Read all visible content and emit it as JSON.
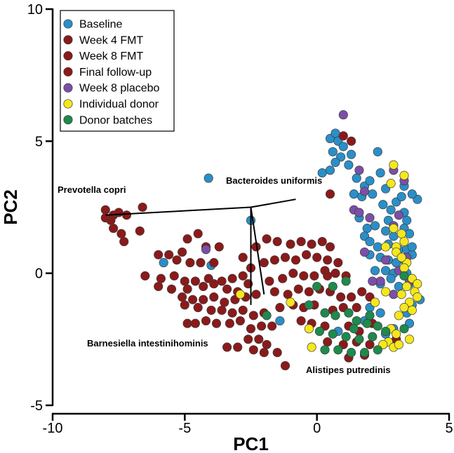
{
  "chart_data": {
    "type": "scatter",
    "title": "",
    "xlabel": "PC1",
    "ylabel": "PC2",
    "xlim": [
      -10,
      5
    ],
    "ylim": [
      -5,
      10
    ],
    "xticks": [
      -10,
      -5,
      0,
      5
    ],
    "yticks": [
      -5,
      0,
      5,
      10
    ],
    "xtick_labels": [
      "-10",
      "-5",
      "0",
      "5"
    ],
    "ytick_labels": [
      "-5",
      "0",
      "5",
      "10"
    ],
    "grid": false,
    "legend_position": "top-left",
    "legend": [
      {
        "label": "Baseline",
        "color": "#2a8fc8"
      },
      {
        "label": "Week 4 FMT",
        "color": "#8b1a1a"
      },
      {
        "label": "Week 8 FMT",
        "color": "#8b1a1a"
      },
      {
        "label": "Final follow-up",
        "color": "#8b1a1a"
      },
      {
        "label": "Week 8 placebo",
        "color": "#7b4fa8"
      },
      {
        "label": "Individual donor",
        "color": "#f5e71b"
      },
      {
        "label": "Donor batches",
        "color": "#1e8a4c"
      }
    ],
    "loadings": [
      {
        "label": "Prevotella copri",
        "x": -8.0,
        "y": 2.2
      },
      {
        "label": "Bacteroides uniformis",
        "x": -0.8,
        "y": 2.8
      },
      {
        "label": "Barnesiella intestinihominis",
        "x": -2.5,
        "y": -1.2
      },
      {
        "label": "Alistipes putredinis",
        "x": -2.0,
        "y": -0.8
      }
    ],
    "loading_origin": {
      "x": -2.5,
      "y": 2.5
    },
    "series": [
      {
        "legend_index": 0,
        "color": "#2a8fc8",
        "points": [
          [
            0.5,
            5.1
          ],
          [
            0.7,
            5.3
          ],
          [
            0.8,
            5.0
          ],
          [
            0.6,
            4.6
          ],
          [
            0.9,
            4.4
          ],
          [
            1.0,
            4.8
          ],
          [
            1.3,
            4.5
          ],
          [
            0.2,
            3.8
          ],
          [
            0.5,
            3.9
          ],
          [
            0.7,
            4.2
          ],
          [
            1.2,
            4.1
          ],
          [
            1.5,
            3.6
          ],
          [
            1.8,
            3.3
          ],
          [
            2.0,
            3.5
          ],
          [
            2.3,
            4.6
          ],
          [
            2.4,
            3.8
          ],
          [
            2.6,
            3.2
          ],
          [
            1.4,
            3.0
          ],
          [
            1.7,
            2.9
          ],
          [
            2.1,
            3.0
          ],
          [
            2.5,
            2.6
          ],
          [
            2.8,
            2.4
          ],
          [
            2.7,
            2.0
          ],
          [
            3.0,
            2.7
          ],
          [
            3.2,
            2.9
          ],
          [
            3.3,
            2.3
          ],
          [
            3.4,
            2.0
          ],
          [
            1.6,
            2.1
          ],
          [
            1.9,
            1.7
          ],
          [
            2.2,
            1.8
          ],
          [
            2.6,
            1.6
          ],
          [
            2.9,
            1.4
          ],
          [
            3.3,
            1.7
          ],
          [
            3.5,
            1.5
          ],
          [
            1.8,
            1.4
          ],
          [
            2.0,
            1.2
          ],
          [
            2.3,
            1.0
          ],
          [
            2.7,
            1.1
          ],
          [
            3.1,
            0.9
          ],
          [
            3.4,
            0.9
          ],
          [
            3.6,
            0.7
          ],
          [
            2.0,
            0.7
          ],
          [
            2.4,
            0.6
          ],
          [
            2.7,
            0.5
          ],
          [
            3.0,
            0.4
          ],
          [
            3.3,
            0.5
          ],
          [
            2.2,
            0.1
          ],
          [
            2.6,
            0.1
          ],
          [
            2.9,
            0.0
          ],
          [
            3.4,
            0.0
          ],
          [
            2.4,
            -0.4
          ],
          [
            2.8,
            -0.2
          ],
          [
            3.1,
            -0.5
          ],
          [
            3.5,
            -0.4
          ],
          [
            3.9,
            -1.0
          ],
          [
            3.6,
            -1.2
          ],
          [
            3.4,
            -1.5
          ],
          [
            3.5,
            -1.9
          ],
          [
            2.9,
            -2.1
          ],
          [
            2.6,
            -2.3
          ],
          [
            2.4,
            -1.5
          ],
          [
            2.0,
            -1.3
          ],
          [
            1.8,
            -1.8
          ],
          [
            0.8,
            -2.2
          ],
          [
            -1.4,
            -1.8
          ],
          [
            -4.1,
            3.6
          ],
          [
            -5.8,
            0.4
          ],
          [
            -4.0,
            0.3
          ],
          [
            -2.5,
            2.0
          ],
          [
            3.8,
            2.8
          ],
          [
            3.6,
            3.0
          ],
          [
            3.3,
            3.3
          ],
          [
            3.6,
            1.0
          ]
        ]
      },
      {
        "legend_index": 1,
        "color": "#8b1a1a",
        "points": [
          [
            -8.0,
            2.4
          ],
          [
            -7.7,
            2.2
          ],
          [
            -7.5,
            2.3
          ],
          [
            -7.8,
            2.0
          ],
          [
            -7.2,
            2.2
          ],
          [
            -6.6,
            2.5
          ],
          [
            -8.0,
            2.1
          ],
          [
            -7.7,
            1.7
          ],
          [
            -7.4,
            1.5
          ],
          [
            -6.7,
            1.6
          ],
          [
            -7.3,
            1.2
          ],
          [
            -4.5,
            1.5
          ],
          [
            -4.9,
            1.3
          ],
          [
            -4.2,
            1.0
          ],
          [
            -3.7,
            1.0
          ],
          [
            -5.1,
            0.8
          ],
          [
            -5.6,
            0.7
          ],
          [
            -6.0,
            0.7
          ],
          [
            -5.3,
            0.5
          ],
          [
            -4.8,
            0.4
          ],
          [
            -4.4,
            0.4
          ],
          [
            -3.9,
            0.4
          ],
          [
            -6.5,
            -0.1
          ],
          [
            -5.9,
            -0.2
          ],
          [
            -5.4,
            -0.1
          ],
          [
            -5.0,
            -0.3
          ],
          [
            -4.6,
            -0.3
          ],
          [
            -4.1,
            -0.2
          ],
          [
            -3.6,
            -0.3
          ],
          [
            -3.2,
            -0.2
          ],
          [
            -2.8,
            -0.1
          ],
          [
            -6.0,
            -0.5
          ],
          [
            -5.5,
            -0.6
          ],
          [
            -4.9,
            -0.6
          ],
          [
            -4.3,
            -0.5
          ],
          [
            -3.9,
            -0.4
          ],
          [
            -3.4,
            -0.6
          ],
          [
            -3.0,
            -0.7
          ],
          [
            -2.6,
            -0.4
          ],
          [
            -5.1,
            -0.9
          ],
          [
            -4.7,
            -1.0
          ],
          [
            -4.3,
            -1.0
          ],
          [
            -3.9,
            -0.9
          ],
          [
            -3.5,
            -1.1
          ],
          [
            -3.1,
            -1.0
          ],
          [
            -2.7,
            -0.9
          ],
          [
            -2.3,
            -0.8
          ],
          [
            -5.0,
            -1.2
          ],
          [
            -4.5,
            -1.3
          ],
          [
            -4.0,
            -1.4
          ],
          [
            -3.6,
            -1.4
          ],
          [
            -3.2,
            -1.5
          ],
          [
            -2.8,
            -1.4
          ],
          [
            -2.4,
            -1.6
          ],
          [
            -2.0,
            -1.5
          ],
          [
            -4.9,
            -1.9
          ],
          [
            -4.6,
            -1.9
          ],
          [
            -4.2,
            -1.8
          ],
          [
            -3.8,
            -1.9
          ],
          [
            -3.3,
            -1.9
          ],
          [
            -2.9,
            -1.8
          ],
          [
            -2.5,
            -2.1
          ],
          [
            -2.1,
            -2.0
          ],
          [
            -1.7,
            -2.0
          ],
          [
            -2.6,
            -2.5
          ],
          [
            -2.2,
            -2.5
          ],
          [
            -1.9,
            -2.7
          ],
          [
            -2.4,
            -2.9
          ],
          [
            -2.0,
            -3.0
          ],
          [
            -1.5,
            -3.0
          ],
          [
            -3.0,
            -2.8
          ],
          [
            -3.4,
            -2.8
          ],
          [
            -1.2,
            -3.5
          ],
          [
            -2.8,
            0.6
          ],
          [
            -2.3,
            1.0
          ],
          [
            -1.9,
            1.3
          ],
          [
            -1.5,
            1.2
          ],
          [
            -1.0,
            1.1
          ],
          [
            -0.6,
            1.2
          ],
          [
            -0.2,
            1.1
          ],
          [
            0.2,
            1.2
          ],
          [
            0.5,
            1.0
          ],
          [
            -2.5,
            0.2
          ],
          [
            -2.0,
            0.4
          ],
          [
            -1.6,
            0.5
          ],
          [
            -1.2,
            0.6
          ],
          [
            -0.8,
            0.5
          ],
          [
            -0.4,
            0.7
          ],
          [
            0.0,
            0.6
          ],
          [
            0.4,
            0.5
          ],
          [
            0.8,
            0.4
          ],
          [
            -1.8,
            -0.3
          ],
          [
            -1.3,
            -0.2
          ],
          [
            -0.9,
            0.0
          ],
          [
            -0.5,
            -0.1
          ],
          [
            -0.1,
            -0.1
          ],
          [
            0.3,
            0.1
          ],
          [
            0.7,
            0.0
          ],
          [
            1.1,
            -0.1
          ],
          [
            -1.6,
            -0.7
          ],
          [
            -1.1,
            -0.8
          ],
          [
            -0.7,
            -0.6
          ],
          [
            -0.3,
            -0.7
          ],
          [
            0.1,
            -0.6
          ],
          [
            0.5,
            -0.7
          ],
          [
            0.9,
            -0.9
          ],
          [
            1.3,
            -0.9
          ],
          [
            1.7,
            -0.7
          ],
          [
            -1.4,
            -1.3
          ],
          [
            -0.9,
            -1.2
          ],
          [
            -0.5,
            -1.3
          ],
          [
            -0.1,
            -1.2
          ],
          [
            0.6,
            -1.4
          ],
          [
            1.0,
            -1.3
          ],
          [
            1.5,
            -1.3
          ],
          [
            -0.6,
            -1.8
          ],
          [
            -0.2,
            -1.9
          ],
          [
            0.3,
            -2.0
          ],
          [
            1.2,
            -2.0
          ],
          [
            1.6,
            -2.2
          ],
          [
            0.4,
            -2.6
          ],
          [
            1.0,
            -2.7
          ],
          [
            1.5,
            -2.6
          ],
          [
            2.0,
            -2.7
          ],
          [
            1.8,
            -3.1
          ],
          [
            1.2,
            -3.2
          ],
          [
            0.5,
            3.0
          ],
          [
            1.0,
            5.2
          ],
          [
            1.3,
            5.0
          ],
          [
            0.4,
            -0.1
          ],
          [
            2.0,
            -0.9
          ],
          [
            2.5,
            -2.7
          ],
          [
            3.0,
            -2.5
          ],
          [
            2.1,
            -1.9
          ]
        ]
      },
      {
        "legend_index": 4,
        "color": "#7b4fa8",
        "points": [
          [
            1.0,
            6.0
          ],
          [
            1.6,
            3.9
          ],
          [
            2.9,
            3.9
          ],
          [
            3.3,
            3.5
          ],
          [
            1.8,
            3.1
          ],
          [
            1.4,
            2.4
          ],
          [
            1.6,
            2.3
          ],
          [
            2.0,
            2.1
          ],
          [
            3.1,
            2.2
          ],
          [
            2.9,
            1.8
          ],
          [
            1.8,
            0.8
          ],
          [
            2.6,
            0.5
          ],
          [
            3.4,
            0.6
          ],
          [
            2.4,
            -0.3
          ],
          [
            3.1,
            0.1
          ],
          [
            3.5,
            -0.3
          ],
          [
            2.1,
            -0.3
          ],
          [
            -4.2,
            0.9
          ],
          [
            2.9,
            -0.8
          ]
        ]
      },
      {
        "legend_index": 5,
        "color": "#f5e71b",
        "points": [
          [
            2.9,
            4.1
          ],
          [
            3.3,
            3.7
          ],
          [
            2.8,
            3.4
          ],
          [
            2.9,
            1.7
          ],
          [
            3.2,
            1.5
          ],
          [
            3.3,
            1.2
          ],
          [
            3.0,
            1.0
          ],
          [
            2.6,
            1.0
          ],
          [
            3.0,
            0.8
          ],
          [
            3.4,
            0.4
          ],
          [
            3.2,
            0.6
          ],
          [
            3.3,
            0.2
          ],
          [
            3.6,
            -0.2
          ],
          [
            3.8,
            -0.4
          ],
          [
            3.4,
            -0.5
          ],
          [
            3.7,
            -0.7
          ],
          [
            3.2,
            -0.8
          ],
          [
            3.5,
            -1.1
          ],
          [
            3.3,
            -1.3
          ],
          [
            3.6,
            -1.4
          ],
          [
            3.1,
            -1.6
          ],
          [
            2.8,
            -2.1
          ],
          [
            3.0,
            -2.3
          ],
          [
            3.5,
            -2.5
          ],
          [
            2.7,
            -2.6
          ],
          [
            2.9,
            -2.8
          ],
          [
            3.1,
            -2.7
          ],
          [
            2.5,
            -2.7
          ],
          [
            -0.2,
            -2.8
          ],
          [
            -0.3,
            -2.1
          ],
          [
            -1.0,
            -1.1
          ],
          [
            -2.9,
            -0.8
          ],
          [
            2.6,
            -0.7
          ],
          [
            2.2,
            -1.1
          ],
          [
            3.8,
            -0.9
          ]
        ]
      },
      {
        "legend_index": 6,
        "color": "#1e8a4c",
        "points": [
          [
            -1.9,
            -1.6
          ],
          [
            0.0,
            -0.5
          ],
          [
            -0.3,
            -1.2
          ],
          [
            0.3,
            -1.5
          ],
          [
            0.7,
            -1.6
          ],
          [
            1.2,
            -1.5
          ],
          [
            1.5,
            -1.8
          ],
          [
            1.9,
            -1.9
          ],
          [
            2.3,
            -2.0
          ],
          [
            0.1,
            -2.2
          ],
          [
            0.6,
            -2.3
          ],
          [
            1.1,
            -2.4
          ],
          [
            1.6,
            -2.5
          ],
          [
            2.1,
            -2.4
          ],
          [
            0.3,
            -2.9
          ],
          [
            0.8,
            -2.9
          ],
          [
            1.3,
            -3.0
          ],
          [
            1.8,
            -3.0
          ],
          [
            2.3,
            -2.9
          ],
          [
            1.4,
            -2.1
          ],
          [
            2.0,
            -1.6
          ],
          [
            3.3,
            -0.1
          ],
          [
            3.3,
            -2.1
          ],
          [
            2.6,
            -2.2
          ],
          [
            0.6,
            -0.5
          ],
          [
            1.1,
            -0.3
          ]
        ]
      }
    ]
  }
}
